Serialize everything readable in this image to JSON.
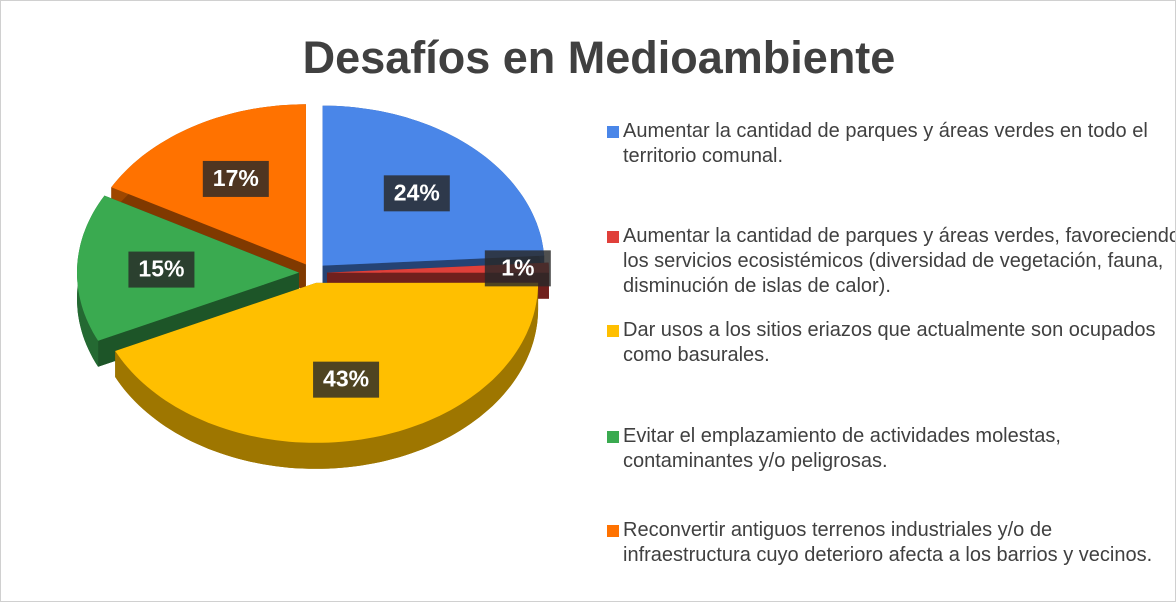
{
  "chart_data": {
    "type": "pie",
    "title": "Desafíos en Medioambiente",
    "categories": [
      "Aumentar la cantidad de parques y áreas verdes en todo el territorio comunal.",
      "Aumentar la cantidad de parques y áreas verdes, favoreciendo los servicios ecosistémicos (diversidad de vegetación, fauna, disminución de islas de calor).",
      "Dar usos a los sitios eriazos que actualmente son ocupados como basurales.",
      "Evitar el emplazamiento de actividades molestas, contaminantes y/o peligrosas.",
      "Reconvertir antiguos terrenos industriales y/o de infraestructura cuyo deterioro afecta a los barrios y vecinos."
    ],
    "values": [
      24,
      1,
      43,
      15,
      17
    ],
    "value_labels": [
      "24%",
      "1%",
      "43%",
      "15%",
      "17%"
    ],
    "colors": [
      "#4a86e8",
      "#e0403a",
      "#ffbf00",
      "#3aaa50",
      "#ff7200"
    ],
    "legend": "right"
  }
}
